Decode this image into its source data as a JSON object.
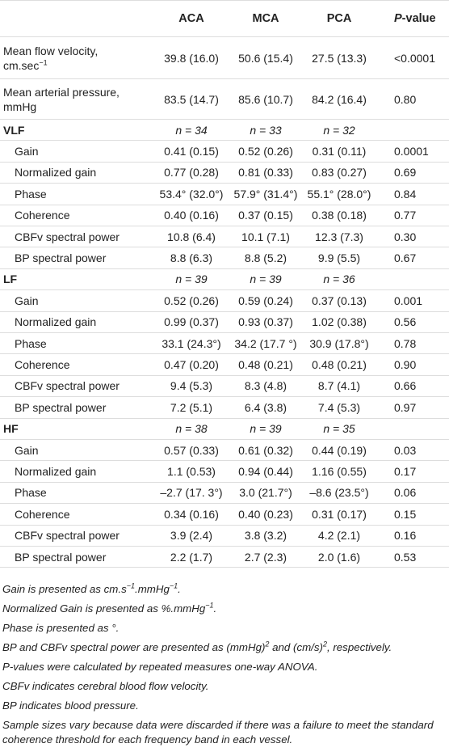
{
  "table": {
    "columns": [
      "ACA",
      "MCA",
      "PCA"
    ],
    "p_header": {
      "italic": "P",
      "text": "-value"
    },
    "rows": [
      {
        "label": "Mean flow velocity,",
        "label_line2": "cm.sec",
        "label_sup": "−1",
        "values": [
          "39.8 (16.0)",
          "50.6 (15.4)",
          "27.5 (13.3)"
        ],
        "p": "<0.0001"
      },
      {
        "label": "Mean arterial pressure,",
        "label_line2": "mmHg",
        "values": [
          "83.5 (14.7)",
          "85.6 (10.7)",
          "84.2 (16.4)"
        ],
        "p": "0.80"
      },
      {
        "section": "VLF",
        "values": [
          "n = 34",
          "n = 33",
          "n = 32"
        ]
      },
      {
        "label": "Gain",
        "values": [
          "0.41 (0.15)",
          "0.52 (0.26)",
          "0.31 (0.11)"
        ],
        "p": "0.0001"
      },
      {
        "label": "Normalized gain",
        "values": [
          "0.77 (0.28)",
          "0.81 (0.33)",
          "0.83 (0.27)"
        ],
        "p": "0.69"
      },
      {
        "label": "Phase",
        "values": [
          "53.4° (32.0°)",
          "57.9° (31.4°)",
          "55.1° (28.0°)"
        ],
        "p": "0.84"
      },
      {
        "label": "Coherence",
        "values": [
          "0.40 (0.16)",
          "0.37 (0.15)",
          "0.38 (0.18)"
        ],
        "p": "0.77"
      },
      {
        "label": "CBFv spectral power",
        "values": [
          "10.8 (6.4)",
          "10.1 (7.1)",
          "12.3 (7.3)"
        ],
        "p": "0.30"
      },
      {
        "label": "BP spectral power",
        "values": [
          "8.8 (6.3)",
          "8.8 (5.2)",
          "9.9 (5.5)"
        ],
        "p": "0.67"
      },
      {
        "section": "LF",
        "values": [
          "n = 39",
          "n = 39",
          "n = 36"
        ]
      },
      {
        "label": "Gain",
        "values": [
          "0.52 (0.26)",
          "0.59 (0.24)",
          "0.37 (0.13)"
        ],
        "p": "0.001"
      },
      {
        "label": "Normalized gain",
        "values": [
          "0.99 (0.37)",
          "0.93 (0.37)",
          "1.02 (0.38)"
        ],
        "p": "0.56"
      },
      {
        "label": "Phase",
        "values": [
          "33.1 (24.3°)",
          "34.2 (17.7 °)",
          "30.9 (17.8°)"
        ],
        "p": "0.78"
      },
      {
        "label": "Coherence",
        "values": [
          "0.47 (0.20)",
          "0.48 (0.21)",
          "0.48 (0.21)"
        ],
        "p": "0.90"
      },
      {
        "label": "CBFv spectral power",
        "values": [
          "9.4 (5.3)",
          "8.3 (4.8)",
          "8.7 (4.1)"
        ],
        "p": "0.66"
      },
      {
        "label": "BP spectral power",
        "values": [
          "7.2 (5.1)",
          "6.4 (3.8)",
          "7.4 (5.3)"
        ],
        "p": "0.97"
      },
      {
        "section": "HF",
        "values": [
          "n = 38",
          "n = 39",
          "n = 35"
        ]
      },
      {
        "label": "Gain",
        "values": [
          "0.57 (0.33)",
          "0.61 (0.32)",
          "0.44 (0.19)"
        ],
        "p": "0.03"
      },
      {
        "label": "Normalized gain",
        "values": [
          "1.1 (0.53)",
          "0.94 (0.44)",
          "1.16 (0.55)"
        ],
        "p": "0.17"
      },
      {
        "label": "Phase",
        "values": [
          "–2.7 (17. 3°)",
          "3.0 (21.7°)",
          "–8.6 (23.5°)"
        ],
        "p": "0.06"
      },
      {
        "label": "Coherence",
        "values": [
          "0.34 (0.16)",
          "0.40 (0.23)",
          "0.31 (0.17)"
        ],
        "p": "0.15"
      },
      {
        "label": "CBFv spectral power",
        "values": [
          "3.9 (2.4)",
          "3.8 (3.2)",
          "4.2 (2.1)"
        ],
        "p": "0.16"
      },
      {
        "label": "BP spectral power",
        "values": [
          "2.2 (1.7)",
          "2.7 (2.3)",
          "2.0 (1.6)"
        ],
        "p": "0.53"
      }
    ]
  },
  "footnotes": [
    [
      "Gain is presented as cm.s",
      {
        "sup": "−1"
      },
      ".mmHg",
      {
        "sup": "−1"
      },
      "."
    ],
    [
      "Normalized Gain is presented as %.mmHg",
      {
        "sup": "−1"
      },
      "."
    ],
    [
      "Phase is presented as °."
    ],
    [
      "BP and CBFv spectral power are presented as (mmHg)",
      {
        "sup": "2"
      },
      " and (cm/s)",
      {
        "sup": "2"
      },
      ", respectively."
    ],
    [
      "P-values were calculated by repeated measures one-way ANOVA."
    ],
    [
      "CBFv indicates cerebral blood flow velocity."
    ],
    [
      "BP indicates blood pressure."
    ],
    [
      "Sample sizes vary because data were discarded if there was a failure to meet the standard coherence threshold for each frequency band in each vessel."
    ]
  ]
}
